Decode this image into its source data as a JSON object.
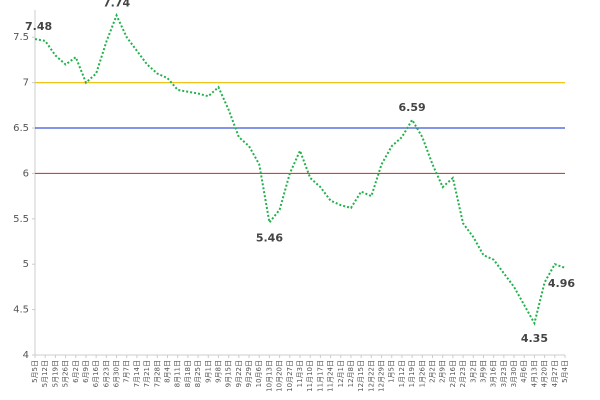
{
  "chart_data": {
    "type": "line",
    "categories": [
      "5月5日",
      "5月12日",
      "5月19日",
      "5月26日",
      "6月2日",
      "6月9日",
      "6月16日",
      "6月23日",
      "6月30日",
      "7月7日",
      "7月14日",
      "7月21日",
      "7月28日",
      "8月4日",
      "8月11日",
      "8月18日",
      "8月25日",
      "9月1日",
      "9月8日",
      "9月15日",
      "9月22日",
      "9月29日",
      "10月6日",
      "10月13日",
      "10月20日",
      "10月27日",
      "11月3日",
      "11月10日",
      "11月17日",
      "11月24日",
      "12月1日",
      "12月8日",
      "12月15日",
      "12月22日",
      "12月29日",
      "1月5日",
      "1月12日",
      "1月19日",
      "1月26日",
      "2月2日",
      "2月9日",
      "2月16日",
      "2月23日",
      "3月2日",
      "3月9日",
      "3月16日",
      "3月23日",
      "3月30日",
      "4月6日",
      "4月13日",
      "4月20日",
      "4月27日",
      "5月4日"
    ],
    "series": [
      {
        "color": "#22b14c",
        "values": [
          7.48,
          7.46,
          7.3,
          7.2,
          7.28,
          7.0,
          7.1,
          7.45,
          7.74,
          7.5,
          7.35,
          7.2,
          7.1,
          7.05,
          6.92,
          6.9,
          6.88,
          6.85,
          6.95,
          6.7,
          6.4,
          6.3,
          6.1,
          5.46,
          5.6,
          6.0,
          6.25,
          5.95,
          5.85,
          5.7,
          5.65,
          5.62,
          5.8,
          5.75,
          6.1,
          6.3,
          6.4,
          6.59,
          6.4,
          6.1,
          5.85,
          5.95,
          5.45,
          5.3,
          5.1,
          5.05,
          4.9,
          4.75,
          4.55,
          4.35,
          4.8,
          5.0,
          4.96
        ]
      }
    ],
    "annotations": [
      {
        "x": "5月5日",
        "text": "7.48"
      },
      {
        "x": "6月30日",
        "text": "7.74"
      },
      {
        "x": "10月13日",
        "text": "5.46"
      },
      {
        "x": "1月19日",
        "text": "6.59"
      },
      {
        "x": "4月13日",
        "text": "4.35"
      },
      {
        "x": "5月4日",
        "text": "4.96"
      }
    ],
    "reference_lines": [
      {
        "value": 7,
        "color": "#f0c419"
      },
      {
        "value": 6.5,
        "color": "#3b55d6"
      },
      {
        "value": 6,
        "color": "#e03a3a"
      }
    ],
    "ylim": [
      4,
      7.8
    ],
    "yticks": [
      4,
      4.5,
      5,
      5.5,
      6,
      6.5,
      7,
      7.5
    ],
    "grid": false
  }
}
